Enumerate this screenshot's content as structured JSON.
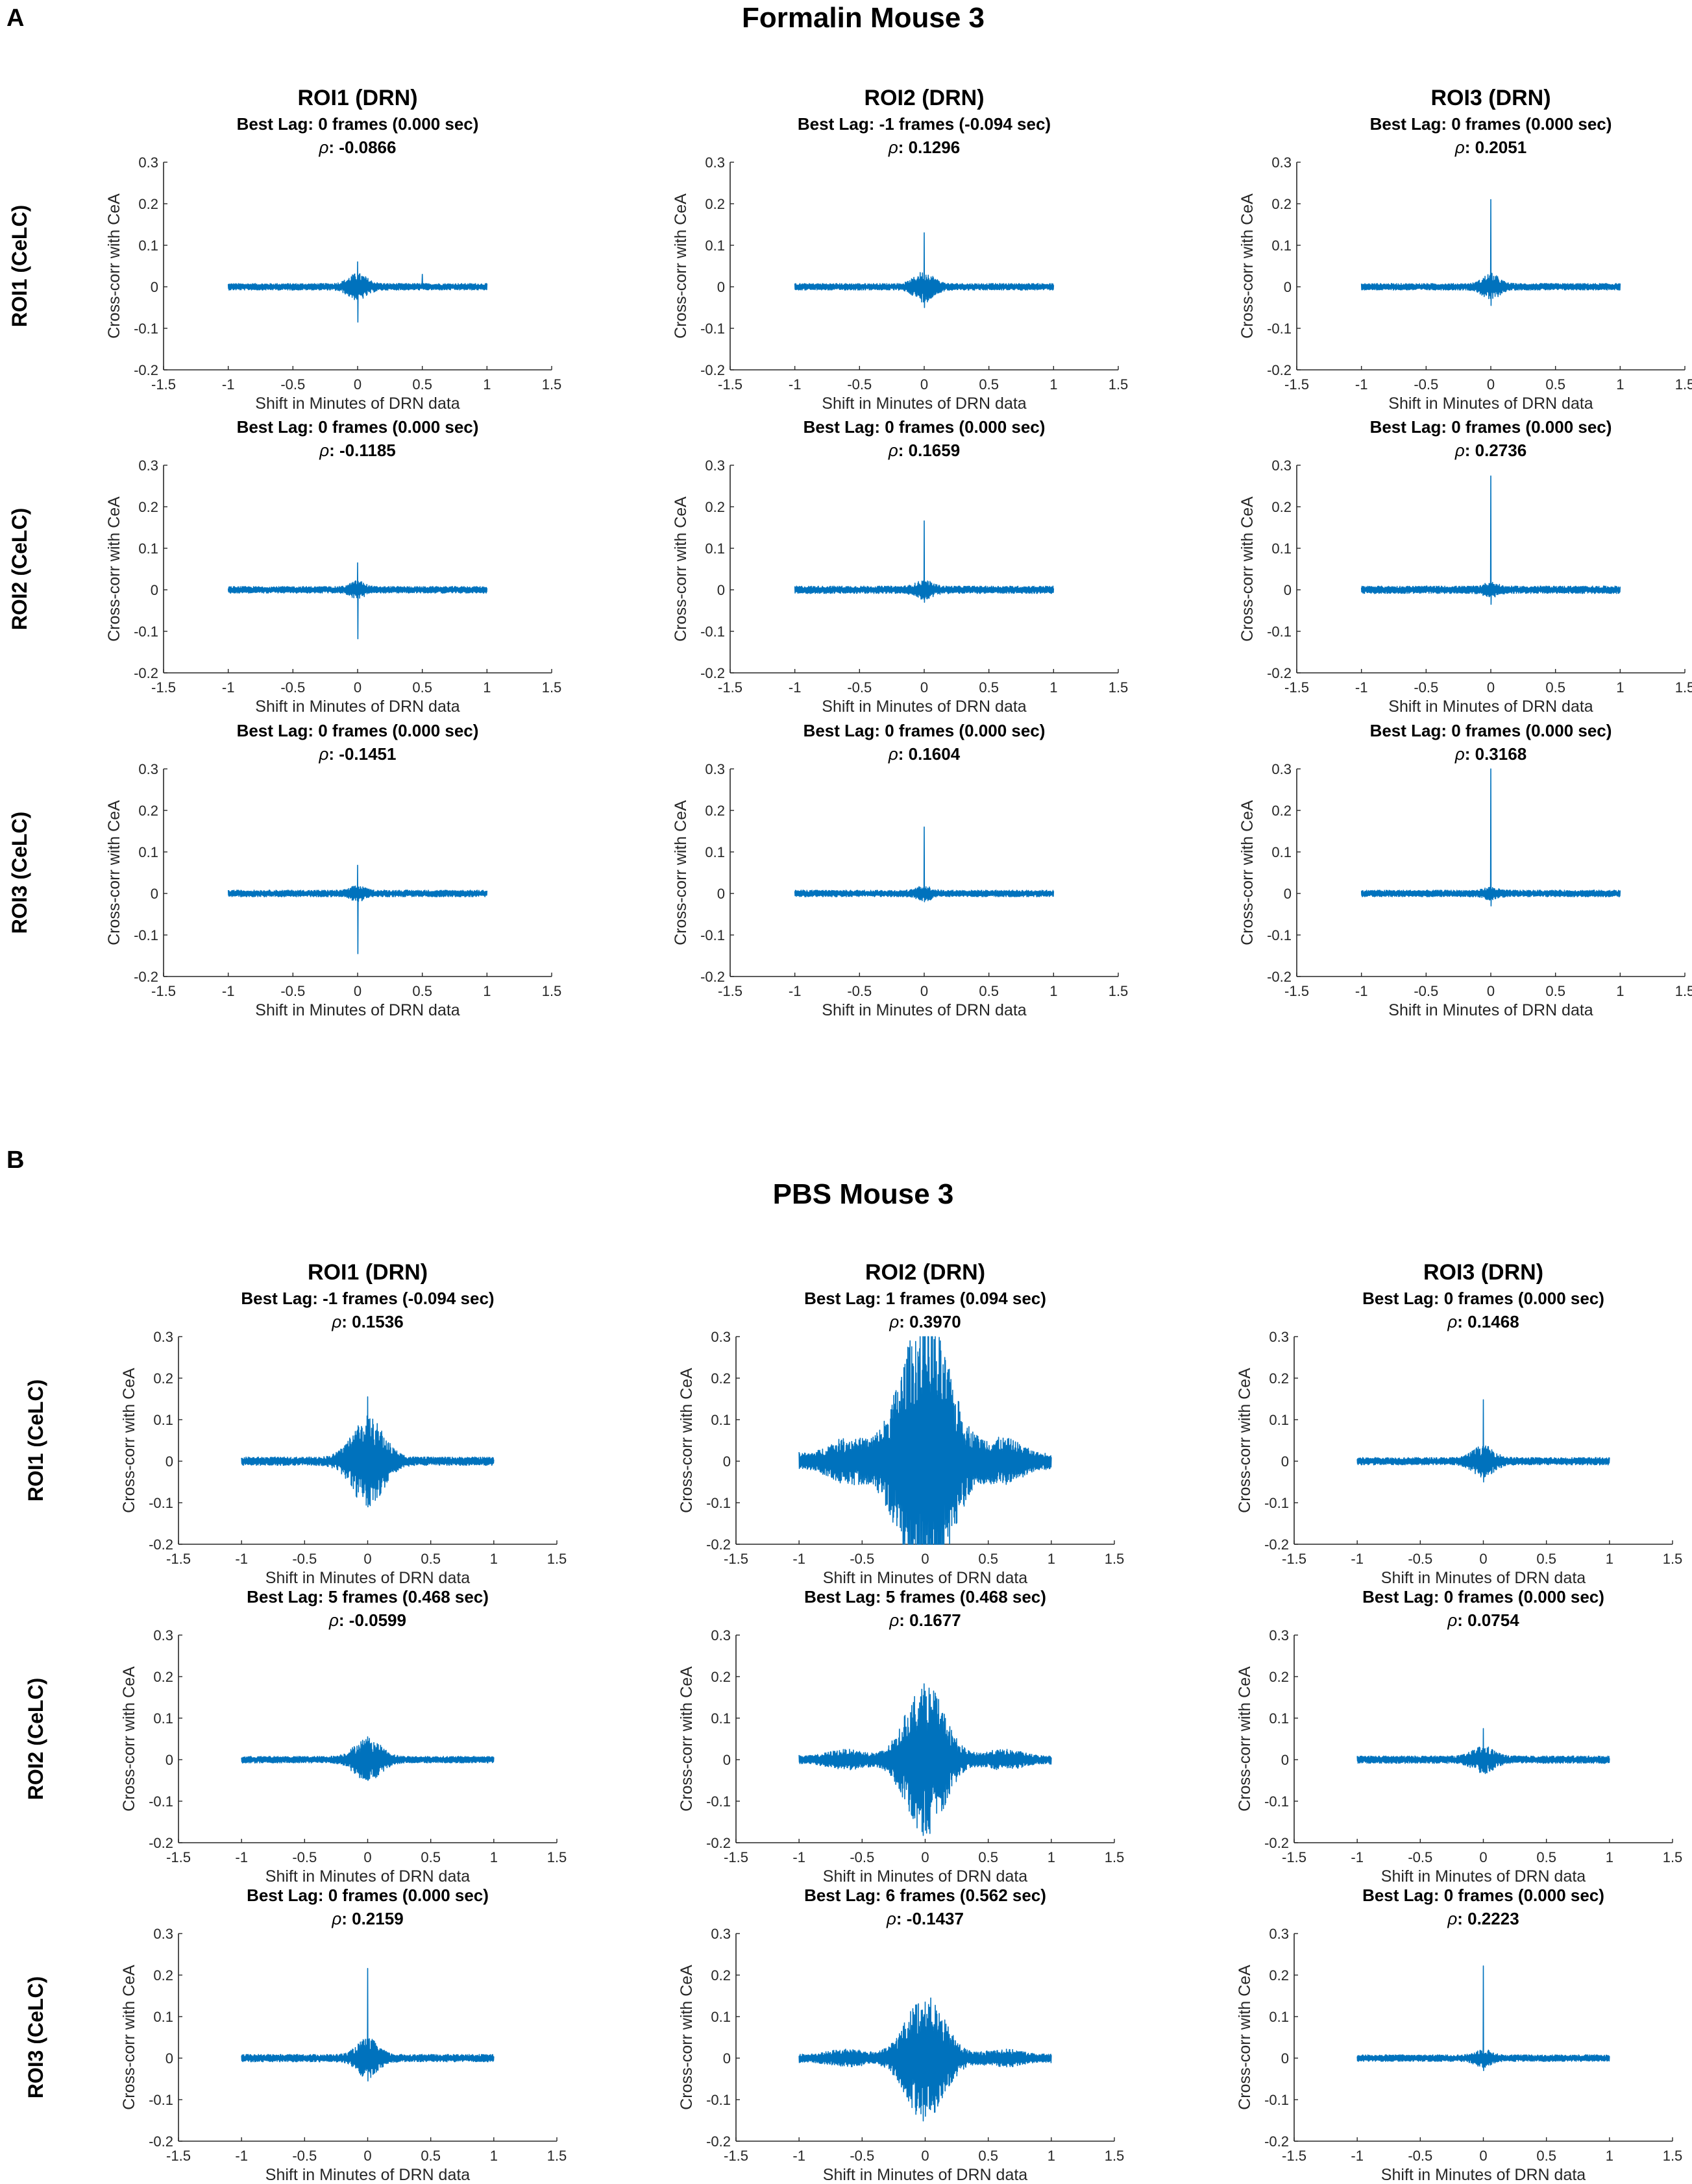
{
  "panels": [
    {
      "letter": "A",
      "title": "Formalin Mouse 3",
      "col_labels": [
        "ROI1 (DRN)",
        "ROI2 (DRN)",
        "ROI3 (DRN)"
      ],
      "row_labels": [
        "ROI1 (CeLC)",
        "ROI2 (CeLC)",
        "ROI3 (CeLC)"
      ]
    },
    {
      "letter": "B",
      "title": "PBS Mouse 3",
      "col_labels": [
        "ROI1 (DRN)",
        "ROI2 (DRN)",
        "ROI3 (DRN)"
      ],
      "row_labels": [
        "ROI1 (CeLC)",
        "ROI2 (CeLC)",
        "ROI3 (CeLC)"
      ]
    }
  ],
  "rho_symbol": "ρ",
  "colors": {
    "series": "#0072BD",
    "axis": "#262626",
    "text": "#000000"
  },
  "chart_data": [
    {
      "type": "line",
      "panel": "A",
      "row": 1,
      "col": 1,
      "best_lag_label": "Best Lag: 0 frames (0.000 sec)",
      "rho": "-0.0866",
      "peak_up": 0.06,
      "peak_down": -0.085,
      "envelope": 0.025,
      "spread": 0.07,
      "baseline": 0.008,
      "secondary": 0,
      "side_peaks": [
        0.03
      ],
      "xlabel": "Shift in Minutes of DRN data",
      "ylabel": "Cross-corr with CeA",
      "xlim": [
        -1.5,
        1.5
      ],
      "ylim": [
        -0.2,
        0.3
      ],
      "xticks": [
        "-1.5",
        "-1",
        "-0.5",
        "0",
        "0.5",
        "1",
        "1.5"
      ],
      "yticks": [
        "-0.2",
        "-0.1",
        "0",
        "0.1",
        "0.2",
        "0.3"
      ]
    },
    {
      "type": "line",
      "panel": "A",
      "row": 1,
      "col": 2,
      "best_lag_label": "Best Lag: -1 frames (-0.094 sec)",
      "rho": "0.1296",
      "peak_up": 0.13,
      "peak_down": -0.05,
      "envelope": 0.03,
      "spread": 0.07,
      "baseline": 0.008,
      "secondary": 0,
      "side_peaks": [],
      "xlabel": "Shift in Minutes of DRN data",
      "ylabel": "Cross-corr with CeA",
      "xlim": [
        -1.5,
        1.5
      ],
      "ylim": [
        -0.2,
        0.3
      ],
      "xticks": [
        "-1.5",
        "-1",
        "-0.5",
        "0",
        "0.5",
        "1",
        "1.5"
      ],
      "yticks": [
        "-0.2",
        "-0.1",
        "0",
        "0.1",
        "0.2",
        "0.3"
      ]
    },
    {
      "type": "line",
      "panel": "A",
      "row": 1,
      "col": 3,
      "best_lag_label": "Best Lag: 0 frames (0.000 sec)",
      "rho": "0.2051",
      "peak_up": 0.21,
      "peak_down": -0.045,
      "envelope": 0.025,
      "spread": 0.06,
      "baseline": 0.008,
      "secondary": 0,
      "side_peaks": [],
      "xlabel": "Shift in Minutes of DRN data",
      "ylabel": "Cross-corr with CeA",
      "xlim": [
        -1.5,
        1.5
      ],
      "ylim": [
        -0.2,
        0.3
      ],
      "xticks": [
        "-1.5",
        "-1",
        "-0.5",
        "0",
        "0.5",
        "1",
        "1.5"
      ],
      "yticks": [
        "-0.2",
        "-0.1",
        "0",
        "0.1",
        "0.2",
        "0.3"
      ]
    },
    {
      "type": "line",
      "panel": "A",
      "row": 2,
      "col": 1,
      "best_lag_label": "Best Lag: 0 frames (0.000 sec)",
      "rho": "-0.1185",
      "peak_up": 0.065,
      "peak_down": -0.118,
      "envelope": 0.015,
      "spread": 0.05,
      "baseline": 0.008,
      "secondary": 0,
      "side_peaks": [],
      "xlabel": "Shift in Minutes of DRN data",
      "ylabel": "Cross-corr with CeA",
      "xlim": [
        -1.5,
        1.5
      ],
      "ylim": [
        -0.2,
        0.3
      ],
      "xticks": [
        "-1.5",
        "-1",
        "-0.5",
        "0",
        "0.5",
        "1",
        "1.5"
      ],
      "yticks": [
        "-0.2",
        "-0.1",
        "0",
        "0.1",
        "0.2",
        "0.3"
      ]
    },
    {
      "type": "line",
      "panel": "A",
      "row": 2,
      "col": 2,
      "best_lag_label": "Best Lag: 0 frames (0.000 sec)",
      "rho": "0.1659",
      "peak_up": 0.166,
      "peak_down": -0.03,
      "envelope": 0.015,
      "spread": 0.06,
      "baseline": 0.009,
      "secondary": 0,
      "side_peaks": [],
      "xlabel": "Shift in Minutes of DRN data",
      "ylabel": "Cross-corr with CeA",
      "xlim": [
        -1.5,
        1.5
      ],
      "ylim": [
        -0.2,
        0.3
      ],
      "xticks": [
        "-1.5",
        "-1",
        "-0.5",
        "0",
        "0.5",
        "1",
        "1.5"
      ],
      "yticks": [
        "-0.2",
        "-0.1",
        "0",
        "0.1",
        "0.2",
        "0.3"
      ]
    },
    {
      "type": "line",
      "panel": "A",
      "row": 2,
      "col": 3,
      "best_lag_label": "Best Lag: 0 frames (0.000 sec)",
      "rho": "0.2736",
      "peak_up": 0.274,
      "peak_down": -0.035,
      "envelope": 0.01,
      "spread": 0.05,
      "baseline": 0.009,
      "secondary": 0,
      "side_peaks": [],
      "xlabel": "Shift in Minutes of DRN data",
      "ylabel": "Cross-corr with CeA",
      "xlim": [
        -1.5,
        1.5
      ],
      "ylim": [
        -0.2,
        0.3
      ],
      "xticks": [
        "-1.5",
        "-1",
        "-0.5",
        "0",
        "0.5",
        "1",
        "1.5"
      ],
      "yticks": [
        "-0.2",
        "-0.1",
        "0",
        "0.1",
        "0.2",
        "0.3"
      ]
    },
    {
      "type": "line",
      "panel": "A",
      "row": 3,
      "col": 1,
      "best_lag_label": "Best Lag: 0 frames (0.000 sec)",
      "rho": "-0.1451",
      "peak_up": 0.068,
      "peak_down": -0.145,
      "envelope": 0.012,
      "spread": 0.05,
      "baseline": 0.008,
      "secondary": 0,
      "side_peaks": [],
      "xlabel": "Shift in Minutes of DRN data",
      "ylabel": "Cross-corr with CeA",
      "xlim": [
        -1.5,
        1.5
      ],
      "ylim": [
        -0.2,
        0.3
      ],
      "xticks": [
        "-1.5",
        "-1",
        "-0.5",
        "0",
        "0.5",
        "1",
        "1.5"
      ],
      "yticks": [
        "-0.2",
        "-0.1",
        "0",
        "0.1",
        "0.2",
        "0.3"
      ]
    },
    {
      "type": "line",
      "panel": "A",
      "row": 3,
      "col": 2,
      "best_lag_label": "Best Lag: 0 frames (0.000 sec)",
      "rho": "0.1604",
      "peak_up": 0.16,
      "peak_down": -0.02,
      "envelope": 0.012,
      "spread": 0.05,
      "baseline": 0.008,
      "secondary": 0,
      "side_peaks": [],
      "xlabel": "Shift in Minutes of DRN data",
      "ylabel": "Cross-corr with CeA",
      "xlim": [
        -1.5,
        1.5
      ],
      "ylim": [
        -0.2,
        0.3
      ],
      "xticks": [
        "-1.5",
        "-1",
        "-0.5",
        "0",
        "0.5",
        "1",
        "1.5"
      ],
      "yticks": [
        "-0.2",
        "-0.1",
        "0",
        "0.1",
        "0.2",
        "0.3"
      ]
    },
    {
      "type": "line",
      "panel": "A",
      "row": 3,
      "col": 3,
      "best_lag_label": "Best Lag: 0 frames (0.000 sec)",
      "rho": "0.3168",
      "peak_up": 0.3,
      "peak_down": -0.03,
      "envelope": 0.008,
      "spread": 0.05,
      "baseline": 0.008,
      "secondary": 0,
      "side_peaks": [],
      "xlabel": "Shift in Minutes of DRN data",
      "ylabel": "Cross-corr with CeA",
      "xlim": [
        -1.5,
        1.5
      ],
      "ylim": [
        -0.2,
        0.3
      ],
      "xticks": [
        "-1.5",
        "-1",
        "-0.5",
        "0",
        "0.5",
        "1",
        "1.5"
      ],
      "yticks": [
        "-0.2",
        "-0.1",
        "0",
        "0.1",
        "0.2",
        "0.3"
      ]
    },
    {
      "type": "line",
      "panel": "B",
      "row": 1,
      "col": 1,
      "best_lag_label": "Best Lag: -1 frames (-0.094 sec)",
      "rho": "0.1536",
      "peak_up": 0.155,
      "peak_down": -0.11,
      "envelope": 0.1,
      "spread": 0.12,
      "baseline": 0.01,
      "secondary": 0,
      "side_peaks": [],
      "xlabel": "Shift in Minutes of DRN data",
      "ylabel": "Cross-corr with CeA",
      "xlim": [
        -1.5,
        1.5
      ],
      "ylim": [
        -0.2,
        0.3
      ],
      "xticks": [
        "-1.5",
        "-1",
        "-0.5",
        "0",
        "0.5",
        "1",
        "1.5"
      ],
      "yticks": [
        "-0.2",
        "-0.1",
        "0",
        "0.1",
        "0.2",
        "0.3"
      ]
    },
    {
      "type": "line",
      "panel": "B",
      "row": 1,
      "col": 2,
      "best_lag_label": "Best Lag: 1 frames (0.094 sec)",
      "rho": "0.3970",
      "peak_up": 0.3,
      "peak_down": -0.2,
      "envelope": 0.3,
      "spread": 0.2,
      "baseline": 0.02,
      "secondary": 0.035,
      "side_peaks": [],
      "xlabel": "Shift in Minutes of DRN data",
      "ylabel": "Cross-corr with CeA",
      "xlim": [
        -1.5,
        1.5
      ],
      "ylim": [
        -0.2,
        0.3
      ],
      "xticks": [
        "-1.5",
        "-1",
        "-0.5",
        "0",
        "0.5",
        "1",
        "1.5"
      ],
      "yticks": [
        "-0.2",
        "-0.1",
        "0",
        "0.1",
        "0.2",
        "0.3"
      ]
    },
    {
      "type": "line",
      "panel": "B",
      "row": 1,
      "col": 3,
      "best_lag_label": "Best Lag: 0 frames (0.000 sec)",
      "rho": "0.1468",
      "peak_up": 0.148,
      "peak_down": -0.05,
      "envelope": 0.03,
      "spread": 0.08,
      "baseline": 0.009,
      "secondary": 0,
      "side_peaks": [],
      "xlabel": "Shift in Minutes of DRN data",
      "ylabel": "Cross-corr with CeA",
      "xlim": [
        -1.5,
        1.5
      ],
      "ylim": [
        -0.2,
        0.3
      ],
      "xticks": [
        "-1.5",
        "-1",
        "-0.5",
        "0",
        "0.5",
        "1",
        "1.5"
      ],
      "yticks": [
        "-0.2",
        "-0.1",
        "0",
        "0.1",
        "0.2",
        "0.3"
      ]
    },
    {
      "type": "line",
      "panel": "B",
      "row": 2,
      "col": 1,
      "best_lag_label": "Best Lag: 5 frames (0.468 sec)",
      "rho": "-0.0599",
      "peak_up": 0.055,
      "peak_down": -0.05,
      "envelope": 0.045,
      "spread": 0.1,
      "baseline": 0.008,
      "secondary": 0,
      "side_peaks": [],
      "xlabel": "Shift in Minutes of DRN data",
      "ylabel": "Cross-corr with CeA",
      "xlim": [
        -1.5,
        1.5
      ],
      "ylim": [
        -0.2,
        0.3
      ],
      "xticks": [
        "-1.5",
        "-1",
        "-0.5",
        "0",
        "0.5",
        "1",
        "1.5"
      ],
      "yticks": [
        "-0.2",
        "-0.1",
        "0",
        "0.1",
        "0.2",
        "0.3"
      ]
    },
    {
      "type": "line",
      "panel": "B",
      "row": 2,
      "col": 2,
      "best_lag_label": "Best Lag: 5 frames (0.468 sec)",
      "rho": "0.1677",
      "peak_up": 0.165,
      "peak_down": -0.17,
      "envelope": 0.16,
      "spread": 0.15,
      "baseline": 0.01,
      "secondary": 0.015,
      "side_peaks": [],
      "xlabel": "Shift in Minutes of DRN data",
      "ylabel": "Cross-corr with CeA",
      "xlim": [
        -1.5,
        1.5
      ],
      "ylim": [
        -0.2,
        0.3
      ],
      "xticks": [
        "-1.5",
        "-1",
        "-0.5",
        "0",
        "0.5",
        "1",
        "1.5"
      ],
      "yticks": [
        "-0.2",
        "-0.1",
        "0",
        "0.1",
        "0.2",
        "0.3"
      ]
    },
    {
      "type": "line",
      "panel": "B",
      "row": 2,
      "col": 3,
      "best_lag_label": "Best Lag: 0 frames (0.000 sec)",
      "rho": "0.0754",
      "peak_up": 0.075,
      "peak_down": -0.03,
      "envelope": 0.025,
      "spread": 0.08,
      "baseline": 0.009,
      "secondary": 0,
      "side_peaks": [],
      "xlabel": "Shift in Minutes of DRN data",
      "ylabel": "Cross-corr with CeA",
      "xlim": [
        -1.5,
        1.5
      ],
      "ylim": [
        -0.2,
        0.3
      ],
      "xticks": [
        "-1.5",
        "-1",
        "-0.5",
        "0",
        "0.5",
        "1",
        "1.5"
      ],
      "yticks": [
        "-0.2",
        "-0.1",
        "0",
        "0.1",
        "0.2",
        "0.3"
      ]
    },
    {
      "type": "line",
      "panel": "B",
      "row": 3,
      "col": 1,
      "best_lag_label": "Best Lag: 0 frames (0.000 sec)",
      "rho": "0.2159",
      "peak_up": 0.216,
      "peak_down": -0.055,
      "envelope": 0.04,
      "spread": 0.08,
      "baseline": 0.009,
      "secondary": 0,
      "side_peaks": [],
      "xlabel": "Shift in Minutes of DRN data",
      "ylabel": "Cross-corr with CeA",
      "xlim": [
        -1.5,
        1.5
      ],
      "ylim": [
        -0.2,
        0.3
      ],
      "xticks": [
        "-1.5",
        "-1",
        "-0.5",
        "0",
        "0.5",
        "1",
        "1.5"
      ],
      "yticks": [
        "-0.2",
        "-0.1",
        "0",
        "0.1",
        "0.2",
        "0.3"
      ]
    },
    {
      "type": "line",
      "panel": "B",
      "row": 3,
      "col": 2,
      "best_lag_label": "Best Lag: 6 frames (0.562 sec)",
      "rho": "-0.1437",
      "peak_up": 0.135,
      "peak_down": -0.14,
      "envelope": 0.13,
      "spread": 0.15,
      "baseline": 0.01,
      "secondary": 0.012,
      "side_peaks": [],
      "xlabel": "Shift in Minutes of DRN data",
      "ylabel": "Cross-corr with CeA",
      "xlim": [
        -1.5,
        1.5
      ],
      "ylim": [
        -0.2,
        0.3
      ],
      "xticks": [
        "-1.5",
        "-1",
        "-0.5",
        "0",
        "0.5",
        "1",
        "1.5"
      ],
      "yticks": [
        "-0.2",
        "-0.1",
        "0",
        "0.1",
        "0.2",
        "0.3"
      ]
    },
    {
      "type": "line",
      "panel": "B",
      "row": 3,
      "col": 3,
      "best_lag_label": "Best Lag: 0 frames (0.000 sec)",
      "rho": "0.2223",
      "peak_up": 0.222,
      "peak_down": -0.03,
      "envelope": 0.015,
      "spread": 0.06,
      "baseline": 0.008,
      "secondary": 0,
      "side_peaks": [],
      "xlabel": "Shift in Minutes of DRN data",
      "ylabel": "Cross-corr with CeA",
      "xlim": [
        -1.5,
        1.5
      ],
      "ylim": [
        -0.2,
        0.3
      ],
      "xticks": [
        "-1.5",
        "-1",
        "-0.5",
        "0",
        "0.5",
        "1",
        "1.5"
      ],
      "yticks": [
        "-0.2",
        "-0.1",
        "0",
        "0.1",
        "0.2",
        "0.3"
      ]
    }
  ]
}
